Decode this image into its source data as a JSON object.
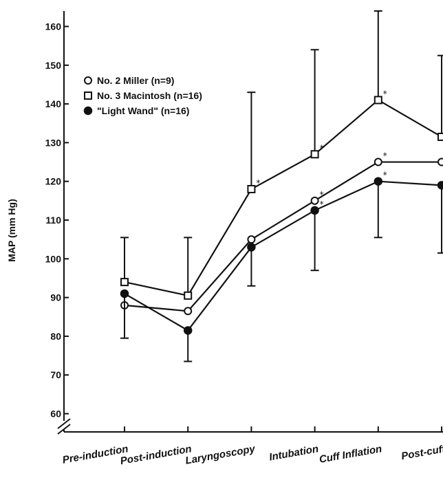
{
  "chart_data": {
    "type": "line",
    "ylabel": "MAP (mm Hg)",
    "xlabel": "",
    "ylim": [
      55,
      165
    ],
    "y_ticks": [
      60,
      70,
      80,
      90,
      100,
      110,
      120,
      130,
      140,
      150,
      160
    ],
    "y_axis_break": true,
    "grid": false,
    "legend_position": "top-left",
    "categories": [
      "Pre-induction",
      "Post-induction",
      "Laryngoscopy",
      "Intubation",
      "Cuff Inflation",
      "Post-cuff"
    ],
    "series": [
      {
        "name": "No. 2 Miller (n=9)",
        "marker": "open-circle",
        "values": [
          88,
          86.5,
          105,
          115,
          125,
          125
        ],
        "error_upper": [
          null,
          null,
          null,
          null,
          null,
          null
        ],
        "error_lower": [
          null,
          null,
          null,
          null,
          null,
          null
        ],
        "significant": [
          false,
          false,
          false,
          true,
          true,
          false
        ]
      },
      {
        "name": "No. 3 Macintosh (n=16)",
        "marker": "open-square",
        "values": [
          94,
          90.5,
          118,
          127,
          141,
          131.5
        ],
        "error_upper": [
          105.5,
          105.5,
          143,
          154,
          164,
          152.5
        ],
        "error_lower": [
          null,
          null,
          null,
          null,
          null,
          null
        ],
        "significant": [
          false,
          false,
          true,
          true,
          true,
          true
        ]
      },
      {
        "name": "\"Light Wand\" (n=16)",
        "marker": "filled-circle",
        "values": [
          91,
          81.5,
          103,
          112.5,
          120,
          119
        ],
        "error_upper": [
          null,
          null,
          null,
          null,
          null,
          null
        ],
        "error_lower": [
          79.5,
          73.5,
          93,
          97,
          105.5,
          101.5
        ],
        "significant": [
          false,
          false,
          false,
          true,
          true,
          false
        ]
      }
    ],
    "significance_marker": "*"
  }
}
